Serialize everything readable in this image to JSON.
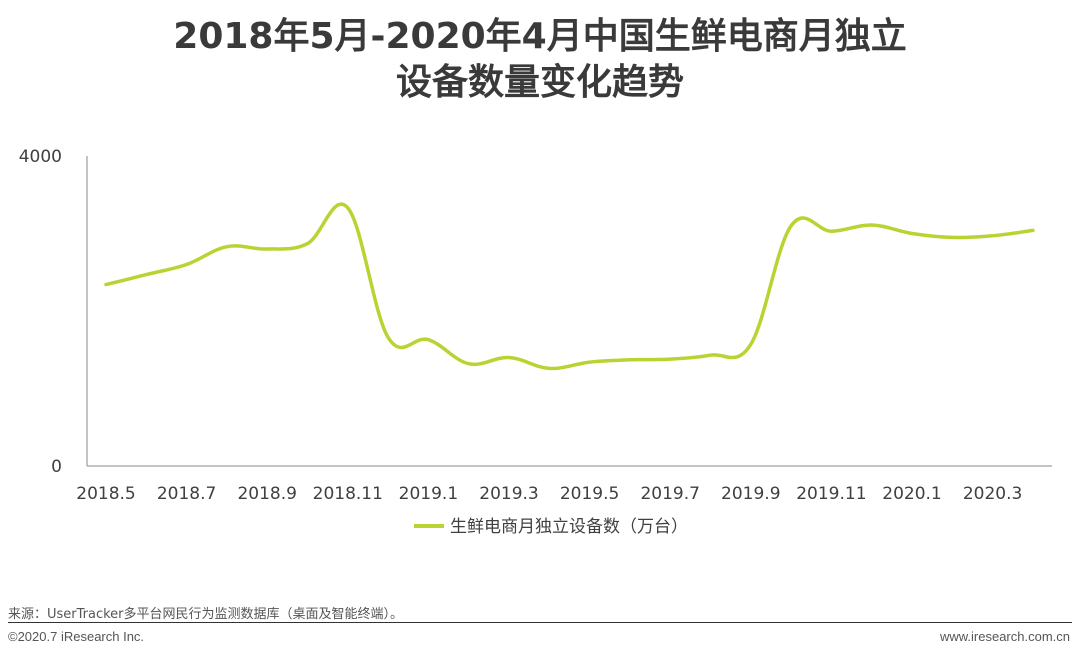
{
  "header": {
    "title_line1": "2018年5月-2020年4月中国生鲜电商月独立",
    "title_line2": "设备数量变化趋势"
  },
  "chart_data": {
    "type": "line",
    "title": "2018年5月-2020年4月中国生鲜电商月独立设备数量变化趋势",
    "x": [
      "2018.5",
      "2018.6",
      "2018.7",
      "2018.8",
      "2018.9",
      "2018.10",
      "2018.11",
      "2018.12",
      "2019.1",
      "2019.2",
      "2019.3",
      "2019.4",
      "2019.5",
      "2019.6",
      "2019.7",
      "2019.8",
      "2019.9",
      "2019.10",
      "2019.11",
      "2019.12",
      "2020.1",
      "2020.2",
      "2020.3",
      "2020.4"
    ],
    "x_tick_labels": [
      "2018.5",
      "2018.7",
      "2018.9",
      "2018.11",
      "2019.1",
      "2019.3",
      "2019.5",
      "2019.7",
      "2019.9",
      "2019.11",
      "2020.1",
      "2020.3"
    ],
    "series": [
      {
        "name": "生鲜电商月独立设备数（万台）",
        "color": "#b8d432",
        "values": [
          2340,
          2470,
          2600,
          2830,
          2800,
          2870,
          3330,
          1660,
          1630,
          1320,
          1400,
          1260,
          1340,
          1370,
          1380,
          1430,
          1570,
          3100,
          3030,
          3110,
          3000,
          2950,
          2970,
          3040
        ]
      }
    ],
    "ylim": [
      0,
      4000
    ],
    "y_tick_labels": [
      "0",
      "4000"
    ],
    "grid": false,
    "legend": "bottom"
  },
  "footer": {
    "source": "来源：UserTracker多平台网民行为监测数据库（桌面及智能终端）。",
    "copyright": "©2020.7 iResearch Inc.",
    "website": "www.iresearch.com.cn"
  }
}
